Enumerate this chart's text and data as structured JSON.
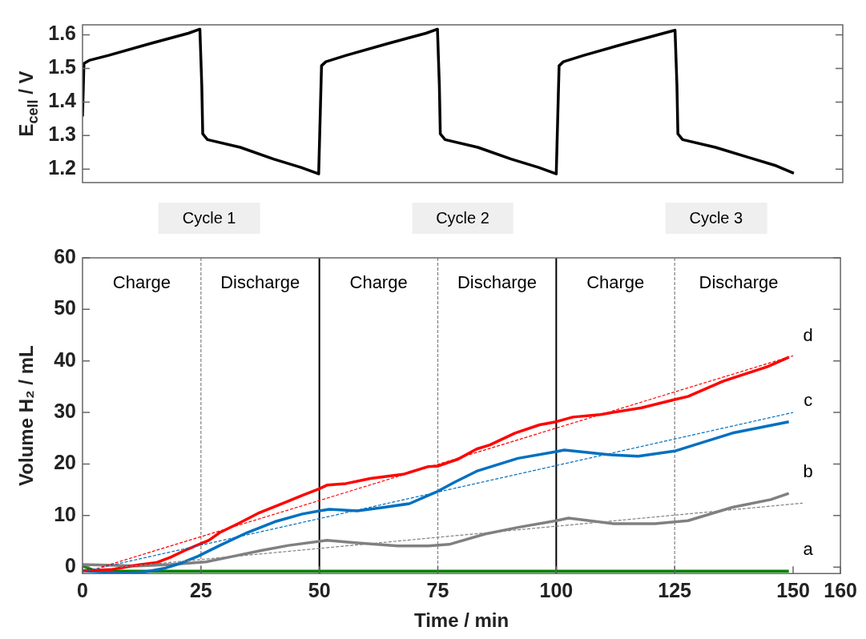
{
  "chart_data": [
    {
      "type": "line",
      "ylabel": "E$_{cell}$ / V",
      "xlim": [
        0,
        160
      ],
      "xticks": [
        0,
        25,
        50,
        75,
        100,
        125,
        150
      ],
      "ylim": [
        1.16,
        1.63
      ],
      "yticks": [
        1.2,
        1.3,
        1.4,
        1.5,
        1.6
      ],
      "tick_labels": "y",
      "grid": false,
      "legend": false,
      "line_style": "solid",
      "annotations": [
        "Cycle 1",
        "Cycle 2",
        "Cycle 3"
      ],
      "series": [
        {
          "color": "#000000",
          "x": [
            0,
            0.3,
            1.4,
            5.5,
            14.2,
            22.3,
            24.7,
            25.1,
            25.3,
            26.3,
            33.2,
            40.2,
            46,
            49.7,
            50.3,
            51.2,
            55.5,
            64.2,
            72.3,
            74.7,
            75.1,
            75.3,
            76.3,
            83.2,
            90.2,
            96,
            99.7,
            100.3,
            101.2,
            105.5,
            114.2,
            122.3,
            124.7,
            125.1,
            125.3,
            126.3,
            133.2,
            140.2,
            146,
            149.7
          ],
          "values": [
            1.357,
            1.515,
            1.524,
            1.539,
            1.574,
            1.605,
            1.617,
            1.45,
            1.305,
            1.288,
            1.265,
            1.23,
            1.205,
            1.186,
            1.508,
            1.52,
            1.539,
            1.574,
            1.605,
            1.617,
            1.45,
            1.305,
            1.288,
            1.265,
            1.23,
            1.205,
            1.186,
            1.508,
            1.52,
            1.539,
            1.574,
            1.605,
            1.614,
            1.45,
            1.305,
            1.288,
            1.265,
            1.235,
            1.21,
            1.188
          ]
        }
      ]
    },
    {
      "type": "line",
      "xlabel": "Time / min",
      "ylabel": "Volume H₂ / mL",
      "xlim": [
        0,
        160
      ],
      "xticks": [
        0,
        25,
        50,
        75,
        100,
        125,
        150,
        160
      ],
      "ylim": [
        -1.25,
        60
      ],
      "yticks": [
        0,
        10,
        20,
        30,
        40,
        50,
        60
      ],
      "grid": false,
      "legend": false,
      "line_style": "solid",
      "annotations": [
        "Charge",
        "Discharge",
        "Charge",
        "Discharge",
        "Charge",
        "Discharge"
      ],
      "ref_lines": [
        {
          "axis": "x",
          "value": 25,
          "color": "#808080",
          "line_style": "dashed"
        },
        {
          "axis": "x",
          "value": 50,
          "color": "#000000",
          "line_style": "solid"
        },
        {
          "axis": "x",
          "value": 75,
          "color": "#808080",
          "line_style": "dashed"
        },
        {
          "axis": "x",
          "value": 100,
          "color": "#000000",
          "line_style": "solid"
        },
        {
          "axis": "x",
          "value": 125,
          "color": "#808080",
          "line_style": "dashed"
        }
      ],
      "series": [
        {
          "name": "d",
          "color": "#ff0000",
          "x": [
            0,
            6,
            11.7,
            15.7,
            18.6,
            22,
            26.7,
            29,
            33,
            37,
            42.9,
            46.4,
            50,
            51.6,
            55.6,
            60.8,
            67.7,
            73,
            75,
            79.2,
            83.2,
            86,
            91.3,
            96.5,
            100,
            103.5,
            109.3,
            118,
            125,
            127.8,
            135.3,
            144.6,
            149.1
          ],
          "values": [
            -0.7,
            -0.5,
            0.4,
            0.9,
            1.9,
            3.4,
            5.2,
            6.7,
            8.5,
            10.4,
            12.6,
            13.9,
            15.2,
            15.9,
            16.2,
            17.2,
            18,
            19.5,
            19.6,
            20.9,
            22.9,
            23.7,
            26,
            27.6,
            28.2,
            29.1,
            29.6,
            30.9,
            32.5,
            33.1,
            36.1,
            38.9,
            40.7
          ]
        },
        {
          "name": "c",
          "color": "#0070c0",
          "x": [
            0,
            8.8,
            13.4,
            17.5,
            20.3,
            24.4,
            29,
            34.8,
            40.6,
            46.4,
            50,
            52.1,
            58,
            63.7,
            69,
            73,
            75,
            78.6,
            83.2,
            91.9,
            100,
            101.7,
            111,
            117.3,
            125,
            128.5,
            137.2,
            149.1
          ],
          "values": [
            -0.7,
            -1.2,
            -0.9,
            -0.2,
            0.6,
            2.1,
            4.2,
            6.7,
            8.8,
            10.3,
            10.9,
            11.2,
            10.9,
            11.6,
            12.3,
            13.9,
            14.7,
            16.5,
            18.6,
            21.1,
            22.4,
            22.7,
            21.8,
            21.5,
            22.5,
            23.5,
            26,
            28.2
          ]
        },
        {
          "name": "b",
          "color": "#808080",
          "x": [
            0,
            11.7,
            18.6,
            26,
            31.9,
            37.7,
            43.5,
            51.6,
            58,
            66.6,
            73,
            77.4,
            84.9,
            91.9,
            100,
            102.6,
            112.1,
            120.8,
            127.8,
            137.2,
            145.3,
            149.1
          ],
          "values": [
            0.5,
            0.2,
            0.5,
            1,
            2.1,
            3.2,
            4.2,
            5.2,
            4.7,
            4.1,
            4.1,
            4.4,
            6.4,
            7.7,
            9,
            9.5,
            8.4,
            8.4,
            9,
            11.6,
            13.1,
            14.3
          ]
        },
        {
          "name": "a",
          "color": "#008000",
          "x": [
            0,
            3,
            149.1
          ],
          "values": [
            0.2,
            -0.8,
            -0.8
          ]
        },
        {
          "type": "line",
          "color": "#ff0000",
          "line_style": "dashed",
          "x": [
            4,
            150
          ],
          "values": [
            0,
            41
          ]
        },
        {
          "type": "line",
          "color": "#0070c0",
          "line_style": "dashed",
          "x": [
            0,
            150
          ],
          "values": [
            -0.9,
            30
          ]
        },
        {
          "type": "line",
          "color": "#808080",
          "line_style": "dashed",
          "x": [
            8,
            152
          ],
          "values": [
            0,
            12.4
          ]
        }
      ]
    }
  ]
}
